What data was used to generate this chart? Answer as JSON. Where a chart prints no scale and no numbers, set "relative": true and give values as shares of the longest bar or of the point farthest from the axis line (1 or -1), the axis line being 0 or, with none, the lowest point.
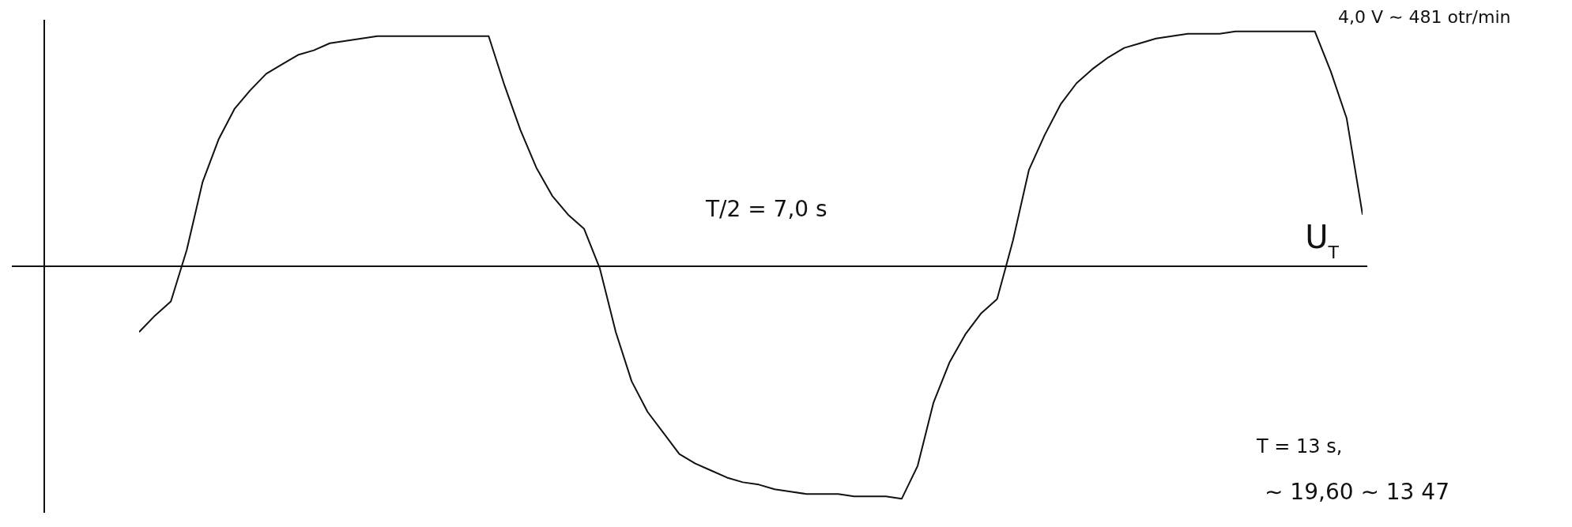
{
  "chart_data": {
    "type": "line",
    "relative": true,
    "categories": [
      null,
      null,
      null,
      null,
      null,
      null,
      null,
      null,
      null,
      null,
      null,
      null,
      null,
      null,
      null,
      null,
      null,
      null,
      null,
      null,
      null,
      null,
      null,
      null,
      null,
      null,
      null,
      null,
      null,
      null,
      null,
      null,
      null,
      null,
      null,
      null,
      null,
      null,
      null,
      null,
      null,
      null,
      null,
      null,
      null,
      null,
      null,
      null,
      null,
      null,
      null,
      null,
      null,
      null,
      null,
      null,
      null,
      null,
      null,
      null,
      null,
      null,
      null,
      null,
      null,
      null,
      null,
      null,
      null,
      null,
      null,
      null,
      null,
      null,
      null,
      null,
      null,
      null
    ],
    "series": [
      {
        "name": "U$_{T}$",
        "color": "#111111",
        "values": [
          -0.28,
          -0.21,
          -0.15,
          0.07,
          0.36,
          0.54,
          0.67,
          0.75,
          0.82,
          0.86,
          0.9,
          0.92,
          0.95,
          0.96,
          0.97,
          0.98,
          0.98,
          0.98,
          0.98,
          0.98,
          0.98,
          0.98,
          0.98,
          0.77,
          0.58,
          0.42,
          0.3,
          0.22,
          0.16,
          -0.01,
          -0.28,
          -0.49,
          -0.62,
          -0.71,
          -0.8,
          -0.84,
          -0.87,
          -0.9,
          -0.92,
          -0.93,
          -0.95,
          -0.96,
          -0.97,
          -0.97,
          -0.97,
          -0.98,
          -0.98,
          -0.98,
          -0.99,
          -0.85,
          -0.58,
          -0.41,
          -0.29,
          -0.2,
          -0.14,
          0.11,
          0.41,
          0.56,
          0.69,
          0.78,
          0.84,
          0.89,
          0.93,
          0.95,
          0.97,
          0.98,
          0.99,
          0.99,
          0.99,
          1.0,
          1.0,
          1.0,
          1.0,
          1.0,
          1.0,
          0.83,
          0.63,
          0.22
        ]
      }
    ],
    "annotations": [
      "4,0 V ∼ 481 otr/min",
      "T/2 = 7,0 s",
      "T = 13 s,",
      "∼ 19,60 ∼ 13 47"
    ]
  }
}
